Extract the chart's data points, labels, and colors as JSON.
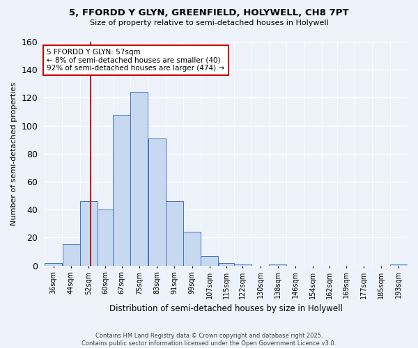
{
  "title": "5, FFORDD Y GLYN, GREENFIELD, HOLYWELL, CH8 7PT",
  "subtitle": "Size of property relative to semi-detached houses in Holywell",
  "xlabel": "Distribution of semi-detached houses by size in Holywell",
  "ylabel": "Number of semi-detached properties",
  "bin_labels": [
    "36sqm",
    "44sqm",
    "52sqm",
    "60sqm",
    "67sqm",
    "75sqm",
    "83sqm",
    "91sqm",
    "99sqm",
    "107sqm",
    "115sqm",
    "122sqm",
    "130sqm",
    "138sqm",
    "146sqm",
    "154sqm",
    "162sqm",
    "169sqm",
    "177sqm",
    "185sqm",
    "193sqm"
  ],
  "bin_values": [
    2,
    15,
    46,
    40,
    108,
    124,
    91,
    46,
    24,
    7,
    2,
    1,
    0,
    1,
    0,
    0,
    0,
    0,
    0,
    0,
    1
  ],
  "bin_edges": [
    36,
    44,
    52,
    60,
    67,
    75,
    83,
    91,
    99,
    107,
    115,
    122,
    130,
    138,
    146,
    154,
    162,
    169,
    177,
    185,
    193,
    201
  ],
  "property_value": 57,
  "property_label": "5 FFORDD Y GLYN: 57sqm",
  "pct_smaller": 8,
  "pct_larger": 92,
  "n_smaller": 40,
  "n_larger": 474,
  "bar_color": "#c6d9f0",
  "bar_edge_color": "#4472c4",
  "line_color": "#cc0000",
  "annotation_box_color": "#cc0000",
  "background_color": "#eef2fb",
  "grid_color": "#ffffff",
  "ylim": [
    0,
    160
  ],
  "yticks": [
    0,
    20,
    40,
    60,
    80,
    100,
    120,
    140,
    160
  ],
  "footer": "Contains HM Land Registry data © Crown copyright and database right 2025.\nContains public sector information licensed under the Open Government Licence v3.0."
}
